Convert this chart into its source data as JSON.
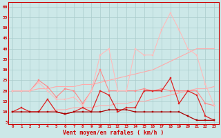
{
  "xlabel": "Vent moyen/en rafales ( km/h )",
  "background_color": "#cce8e8",
  "grid_color": "#aacccc",
  "x_ticks": [
    0,
    1,
    2,
    3,
    4,
    5,
    6,
    7,
    8,
    9,
    10,
    11,
    12,
    13,
    14,
    15,
    16,
    17,
    18,
    19,
    20,
    21,
    22,
    23
  ],
  "ylim": [
    4,
    62
  ],
  "y_ticks": [
    5,
    10,
    15,
    20,
    25,
    30,
    35,
    40,
    45,
    50,
    55,
    60
  ],
  "series": [
    {
      "color": "#ffaaaa",
      "linewidth": 0.8,
      "marker": null,
      "markersize": 0,
      "values": [
        20,
        20,
        20,
        21,
        21,
        22,
        22,
        22,
        23,
        23,
        24,
        25,
        26,
        27,
        28,
        29,
        30,
        32,
        34,
        36,
        38,
        40,
        40,
        40
      ]
    },
    {
      "color": "#ffaaaa",
      "linewidth": 0.8,
      "marker": null,
      "markersize": 0,
      "values": [
        10,
        10,
        10,
        10,
        10,
        11,
        11,
        12,
        12,
        12,
        13,
        13,
        14,
        14,
        15,
        15,
        16,
        17,
        18,
        19,
        20,
        21,
        21,
        22
      ]
    },
    {
      "color": "#ff8888",
      "linewidth": 0.8,
      "marker": "s",
      "markersize": 1.8,
      "values": [
        20,
        20,
        20,
        25,
        22,
        17,
        21,
        20,
        14,
        20,
        30,
        20,
        20,
        20,
        20,
        21,
        20,
        21,
        20,
        20,
        20,
        20,
        14,
        13
      ]
    },
    {
      "color": "#ffbbbb",
      "linewidth": 0.8,
      "marker": "s",
      "markersize": 1.8,
      "values": [
        20,
        20,
        20,
        24,
        20,
        16,
        16,
        17,
        13,
        20,
        37,
        40,
        20,
        20,
        40,
        37,
        37,
        49,
        57,
        49,
        40,
        37,
        23,
        13
      ]
    },
    {
      "color": "#dd2222",
      "linewidth": 0.9,
      "marker": "s",
      "markersize": 1.8,
      "values": [
        10,
        12,
        10,
        10,
        16,
        10,
        9,
        10,
        12,
        10,
        20,
        18,
        10,
        12,
        12,
        20,
        20,
        20,
        26,
        14,
        20,
        18,
        8,
        6
      ]
    },
    {
      "color": "#aa0000",
      "linewidth": 0.9,
      "marker": "s",
      "markersize": 1.8,
      "values": [
        10,
        10,
        10,
        10,
        10,
        10,
        9,
        10,
        10,
        10,
        10,
        11,
        11,
        11,
        10,
        10,
        10,
        10,
        10,
        10,
        8,
        6,
        6,
        6
      ]
    }
  ]
}
